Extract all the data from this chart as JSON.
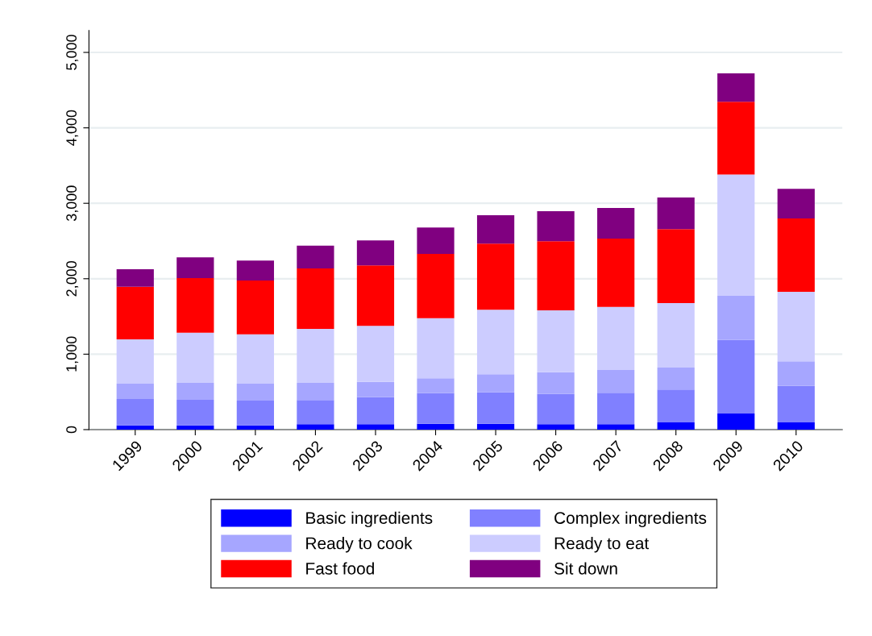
{
  "chart_data": {
    "type": "bar",
    "stacked": true,
    "categories": [
      "1999",
      "2000",
      "2001",
      "2002",
      "2003",
      "2004",
      "2005",
      "2006",
      "2007",
      "2008",
      "2009",
      "2010"
    ],
    "series": [
      {
        "name": "Basic ingredients",
        "color": "#0000ff",
        "values": [
          56,
          56,
          56,
          71,
          71,
          78,
          78,
          71,
          71,
          96,
          214,
          96
        ]
      },
      {
        "name": "Complex ingredients",
        "color": "#8080ff",
        "values": [
          350,
          339,
          329,
          321,
          360,
          406,
          417,
          402,
          417,
          435,
          975,
          484
        ]
      },
      {
        "name": "Ready to cook",
        "color": "#a6a6ff",
        "values": [
          203,
          225,
          224,
          228,
          203,
          197,
          239,
          289,
          303,
          292,
          585,
          325
        ]
      },
      {
        "name": "Ready to eat",
        "color": "#ccccff",
        "values": [
          588,
          665,
          655,
          715,
          741,
          797,
          855,
          819,
          836,
          854,
          1608,
          922
        ]
      },
      {
        "name": "Fast food",
        "color": "#ff0000",
        "values": [
          697,
          723,
          713,
          802,
          801,
          851,
          876,
          916,
          905,
          980,
          964,
          972
        ]
      },
      {
        "name": "Sit down",
        "color": "#800080",
        "values": [
          232,
          275,
          263,
          302,
          331,
          349,
          377,
          398,
          406,
          420,
          376,
          392
        ]
      }
    ],
    "ylim": [
      0,
      5290
    ],
    "yticks": [
      {
        "value": 0,
        "label": "0"
      },
      {
        "value": 1000,
        "label": "1,000"
      },
      {
        "value": 2000,
        "label": "2,000"
      },
      {
        "value": 3000,
        "label": "3,000"
      },
      {
        "value": 4000,
        "label": "4,000"
      },
      {
        "value": 5000,
        "label": "5,000"
      }
    ],
    "grid": "y",
    "legend": "bottom"
  }
}
